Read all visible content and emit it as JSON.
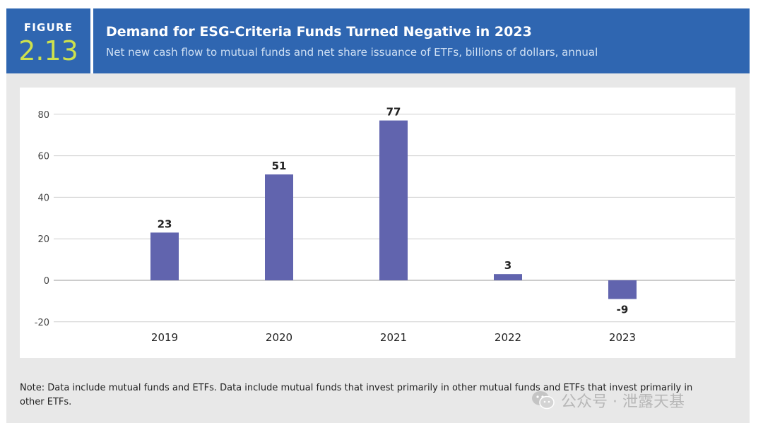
{
  "header": {
    "figure_label": "FIGURE",
    "figure_number": "2.13",
    "title": "Demand for ESG-Criteria Funds Turned Negative in 2023",
    "subtitle": "Net new cash flow to mutual funds and net share issuance of ETFs, billions of dollars, annual"
  },
  "chart_data": {
    "type": "bar",
    "title": "Demand for ESG-Criteria Funds Turned Negative in 2023",
    "subtitle": "Net new cash flow to mutual funds and net share issuance of ETFs, billions of dollars, annual",
    "categories": [
      "2019",
      "2020",
      "2021",
      "2022",
      "2023"
    ],
    "values": [
      23,
      51,
      77,
      3,
      -9
    ],
    "data_labels": [
      "23",
      "51",
      "77",
      "3",
      "-9"
    ],
    "yticks": [
      80,
      60,
      40,
      20,
      0,
      -20
    ],
    "ylim": [
      -20,
      80
    ],
    "xlabel": "",
    "ylabel": "",
    "grid": true,
    "bar_color": "#6164ae"
  },
  "note": "Note: Data include mutual funds and ETFs. Data include mutual funds that invest primarily in other mutual funds and ETFs that invest primarily in other ETFs.",
  "watermark": {
    "icon": "wechat-icon",
    "text": "公众号 · 泄露天基"
  },
  "colors": {
    "header_bg": "#2f66b1",
    "accent_number": "#cde14d",
    "panel_bg": "#e8e8e8"
  }
}
